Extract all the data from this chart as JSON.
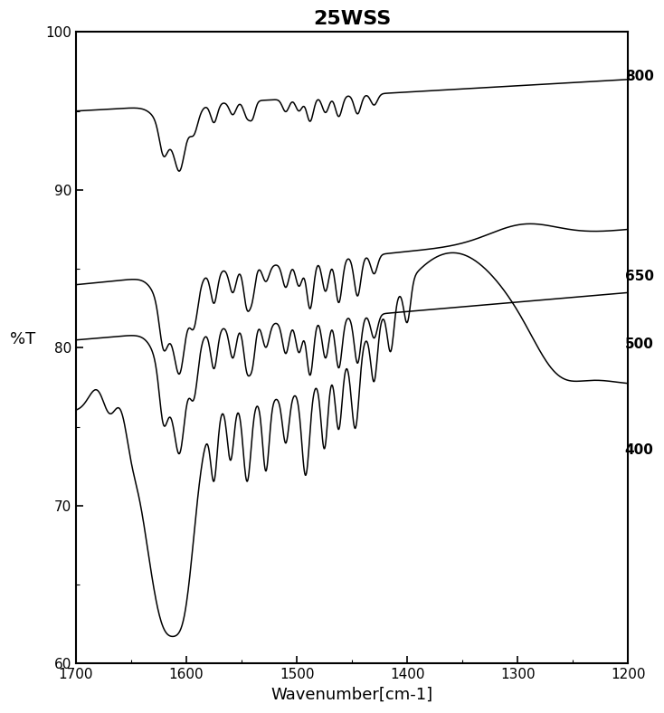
{
  "title": "25WSS",
  "xlabel": "Wavenumber[cm-1]",
  "ylabel": "%T",
  "xlim": [
    1700,
    1200
  ],
  "ylim": [
    60,
    100
  ],
  "ytick_vals": [
    60,
    70,
    80,
    90,
    100
  ],
  "xticks": [
    1700,
    1600,
    1500,
    1400,
    1300,
    1200
  ],
  "line_color": "#000000",
  "background_color": "#ffffff",
  "labels": [
    "800",
    "650",
    "500",
    "400"
  ],
  "title_fontsize": 16,
  "axis_fontsize": 13,
  "tick_fontsize": 11
}
